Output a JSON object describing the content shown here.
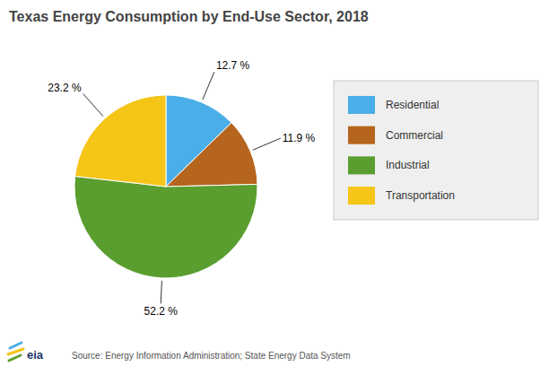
{
  "chart_data": {
    "type": "pie",
    "title": "Texas Energy Consumption by End-Use Sector, 2018",
    "categories": [
      "Residential",
      "Commercial",
      "Industrial",
      "Transportation"
    ],
    "values": [
      12.7,
      11.9,
      52.2,
      23.2
    ],
    "value_labels": [
      "12.7 %",
      "11.9 %",
      "52.2 %",
      "23.2 %"
    ],
    "colors": [
      "#4aaee8",
      "#b5651d",
      "#5a9e2f",
      "#f5c518"
    ],
    "data_labels": true,
    "legend": "right",
    "annotations": [
      "Source: Energy Information Administration; State Energy Data System",
      "eia"
    ]
  }
}
